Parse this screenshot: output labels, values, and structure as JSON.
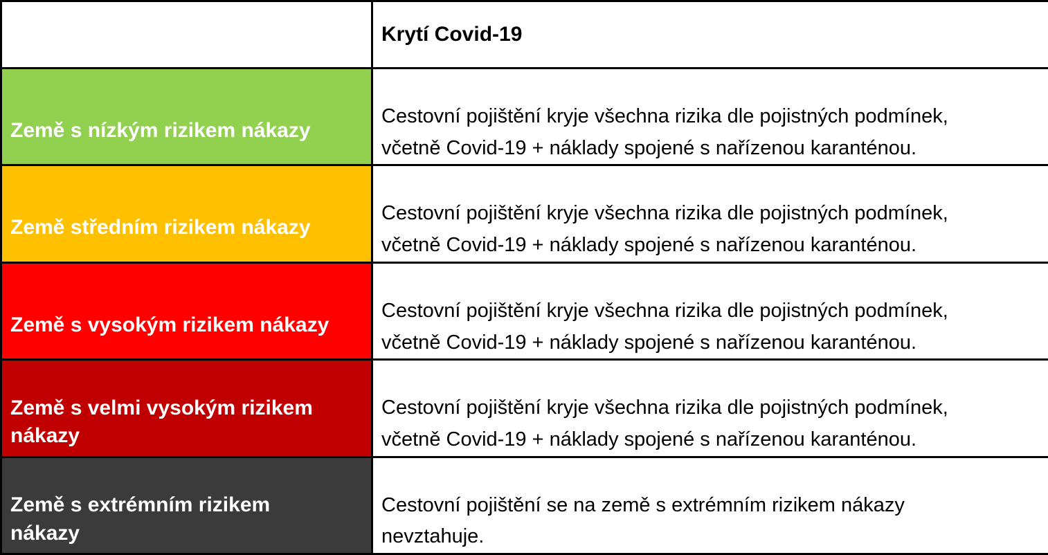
{
  "table": {
    "header": {
      "risk_title": "",
      "coverage_title": "Krytí Covid-19"
    },
    "rows": [
      {
        "label": "Země s nízkým rizikem nákazy",
        "risk_level": "low",
        "color": "#92D050",
        "description": "Cestovní pojištění kryje všechna rizika dle pojistných podmínek,\nvčetně Covid-19 + náklady spojené s nařízenou karanténou."
      },
      {
        "label": "Země středním rizikem nákazy",
        "risk_level": "medium",
        "color": "#FFC000",
        "description": "Cestovní pojištění kryje všechna rizika dle pojistných podmínek,\nvčetně Covid-19 + náklady spojené s nařízenou karanténou."
      },
      {
        "label": "Země s vysokým rizikem nákazy",
        "risk_level": "high",
        "color": "#FF0000",
        "description": "Cestovní pojištění kryje všechna rizika dle pojistných podmínek,\nvčetně Covid-19 + náklady spojené s nařízenou karanténou."
      },
      {
        "label": "Země s velmi vysokým rizikem\nnákazy",
        "risk_level": "very-high",
        "color": "#C00000",
        "description": "Cestovní pojištění kryje všechna rizika dle pojistných podmínek,\nvčetně Covid-19 + náklady spojené s nařízenou karanténou."
      },
      {
        "label": "Země s extrémním rizikem\nnákazy",
        "risk_level": "extreme",
        "color": "#3B3B3B",
        "description": "Cestovní pojištění se na země s extrémním rizikem nákazy\nnevztahuje."
      }
    ],
    "colors": {
      "low_risk": "#92D050",
      "medium_risk": "#FFC000",
      "high_risk": "#FF0000",
      "very_high_risk": "#C00000",
      "extreme_risk": "#3B3B3B",
      "border": "#000000",
      "label_text": "#FFFFFF",
      "body_text": "#000000"
    }
  }
}
